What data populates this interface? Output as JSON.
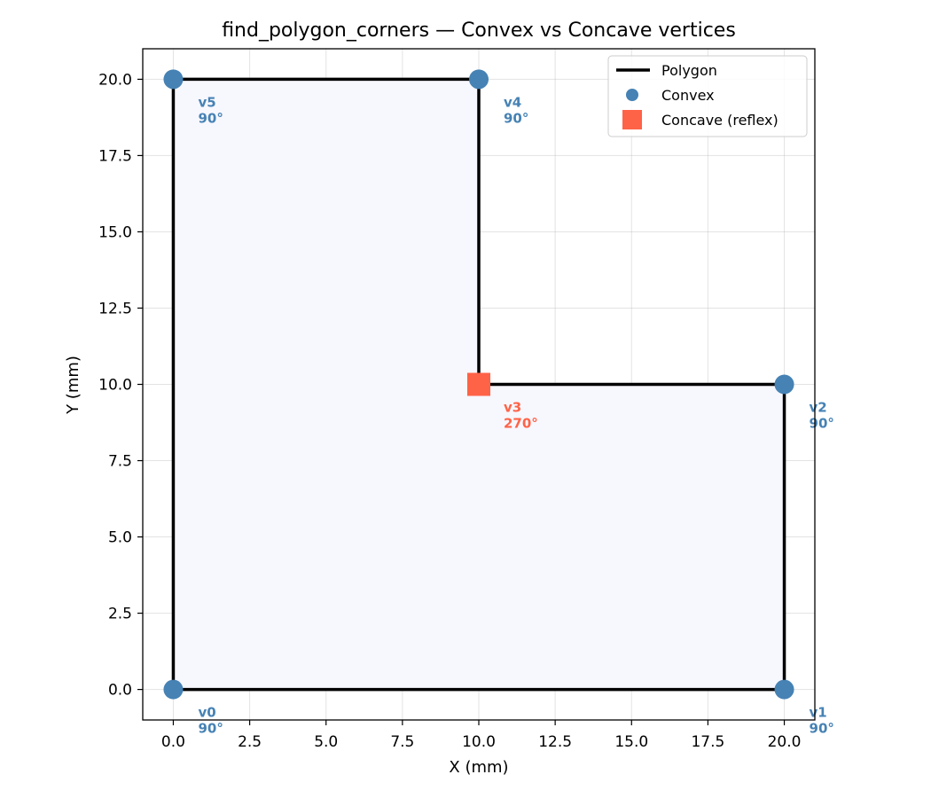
{
  "chart_data": {
    "type": "scatter",
    "title": "find_polygon_corners — Convex vs Concave vertices",
    "xlabel": "X (mm)",
    "ylabel": "Y (mm)",
    "xlim": [
      -1.0,
      21.0
    ],
    "ylim": [
      -1.0,
      21.0
    ],
    "xticks": [
      0.0,
      2.5,
      5.0,
      7.5,
      10.0,
      12.5,
      15.0,
      17.5,
      20.0
    ],
    "yticks": [
      0.0,
      2.5,
      5.0,
      7.5,
      10.0,
      12.5,
      15.0,
      17.5,
      20.0
    ],
    "xtick_labels": [
      "0.0",
      "2.5",
      "5.0",
      "7.5",
      "10.0",
      "12.5",
      "15.0",
      "17.5",
      "20.0"
    ],
    "ytick_labels": [
      "0.0",
      "2.5",
      "5.0",
      "7.5",
      "10.0",
      "12.5",
      "15.0",
      "17.5",
      "20.0"
    ],
    "grid": true,
    "legend_position": "top-right",
    "series": [
      {
        "name": "Polygon",
        "kind": "line",
        "color": "#000000",
        "fill_color": "#f7f7fe",
        "points": [
          [
            0,
            0
          ],
          [
            20,
            0
          ],
          [
            20,
            10
          ],
          [
            10,
            10
          ],
          [
            10,
            20
          ],
          [
            0,
            20
          ],
          [
            0,
            0
          ]
        ]
      },
      {
        "name": "Convex",
        "kind": "marker-circle",
        "color": "#4682b4",
        "points": [
          [
            0,
            0
          ],
          [
            20,
            0
          ],
          [
            20,
            10
          ],
          [
            10,
            20
          ],
          [
            0,
            20
          ]
        ]
      },
      {
        "name": "Concave (reflex)",
        "kind": "marker-square",
        "color": "#ff6347",
        "points": [
          [
            10,
            10
          ]
        ]
      }
    ],
    "vertex_labels": [
      {
        "id": "v0",
        "angle": "90°",
        "x": 0,
        "y": 0,
        "type": "convex"
      },
      {
        "id": "v1",
        "angle": "90°",
        "x": 20,
        "y": 0,
        "type": "convex"
      },
      {
        "id": "v2",
        "angle": "90°",
        "x": 20,
        "y": 10,
        "type": "convex"
      },
      {
        "id": "v3",
        "angle": "270°",
        "x": 10,
        "y": 10,
        "type": "concave"
      },
      {
        "id": "v4",
        "angle": "90°",
        "x": 10,
        "y": 20,
        "type": "convex"
      },
      {
        "id": "v5",
        "angle": "90°",
        "x": 0,
        "y": 20,
        "type": "convex"
      }
    ]
  }
}
